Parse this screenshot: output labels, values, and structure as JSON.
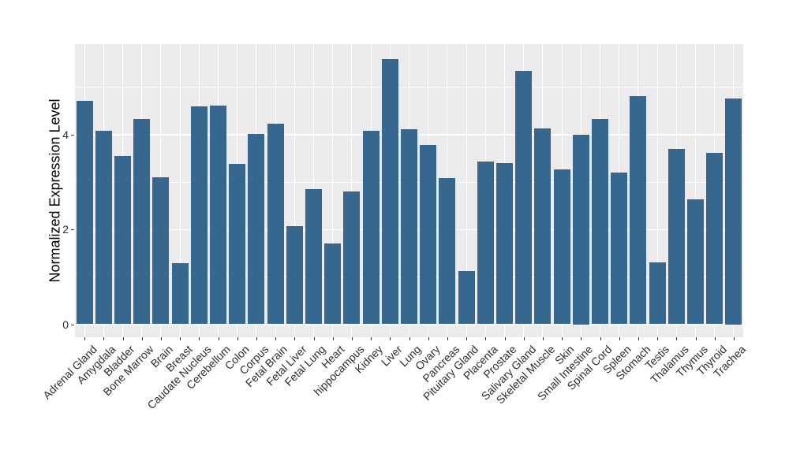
{
  "chart_data": {
    "type": "bar",
    "title": "",
    "xlabel": "",
    "ylabel": "Normalized Expression Level",
    "categories": [
      "Adrenal Gland",
      "Amygdala",
      "Bladder",
      "Bone Marrow",
      "Brain",
      "Breast",
      "Caudate Nucleus",
      "Cerebellum",
      "Colon",
      "Corpus",
      "Fetal Brain",
      "Fetal Liver",
      "Fetal Lung",
      "Heart",
      "hippocampus",
      "Kidney",
      "Liver",
      "Lung",
      "Ovary",
      "Pancreas",
      "Pituitary Gland",
      "Placenta",
      "Prostate",
      "Salivary Gland",
      "Skeletal Muscle",
      "Skin",
      "Small Intestine",
      "Spinal Cord",
      "Spleen",
      "Stomach",
      "Testis",
      "Thalamus",
      "Thymus",
      "Thyroid",
      "Trachea"
    ],
    "values": [
      4.7,
      4.08,
      3.55,
      4.33,
      3.1,
      1.28,
      4.59,
      4.61,
      3.37,
      4.01,
      4.22,
      2.07,
      2.85,
      1.7,
      2.79,
      4.07,
      5.58,
      4.1,
      3.77,
      3.08,
      1.12,
      3.43,
      3.4,
      5.34,
      4.13,
      3.26,
      4.0,
      4.32,
      3.19,
      4.81,
      1.3,
      3.7,
      2.63,
      3.61,
      4.75
    ],
    "y_major_ticks": [
      0,
      2,
      4
    ],
    "y_minor_ticks": [
      1,
      3,
      5
    ],
    "ylim": [
      -0.28,
      5.9
    ],
    "grid": true,
    "legend": "none",
    "bar_color": "#36688F",
    "panel_bg": "#EBEBEB",
    "grid_color": "#FFFFFF",
    "tick_mark_color": "#333333",
    "axis_text_color": "#2E2E2E",
    "axis_title_color": "#000000"
  }
}
